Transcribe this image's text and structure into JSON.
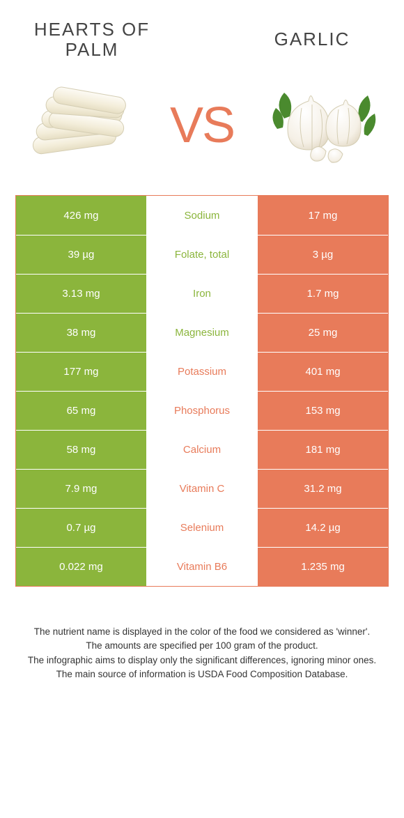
{
  "foods": {
    "left": {
      "name": "Hearts of Palm",
      "color": "#8bb53c"
    },
    "right": {
      "name": "Garlic",
      "color": "#e87b5a"
    }
  },
  "vs_label": "VS",
  "vs_color": "#e87b5a",
  "border_color": "#e87b5a",
  "row_divider_color": "#ffffff",
  "cell_text_color": "#ffffff",
  "label_fontsize": 15,
  "title_fontsize": 26,
  "notes_fontsize": 13.5,
  "rows": [
    {
      "nutrient": "Sodium",
      "left": "426 mg",
      "right": "17 mg",
      "winner": "left"
    },
    {
      "nutrient": "Folate, total",
      "left": "39 µg",
      "right": "3 µg",
      "winner": "left"
    },
    {
      "nutrient": "Iron",
      "left": "3.13 mg",
      "right": "1.7 mg",
      "winner": "left"
    },
    {
      "nutrient": "Magnesium",
      "left": "38 mg",
      "right": "25 mg",
      "winner": "left"
    },
    {
      "nutrient": "Potassium",
      "left": "177 mg",
      "right": "401 mg",
      "winner": "right"
    },
    {
      "nutrient": "Phosphorus",
      "left": "65 mg",
      "right": "153 mg",
      "winner": "right"
    },
    {
      "nutrient": "Calcium",
      "left": "58 mg",
      "right": "181 mg",
      "winner": "right"
    },
    {
      "nutrient": "Vitamin C",
      "left": "7.9 mg",
      "right": "31.2 mg",
      "winner": "right"
    },
    {
      "nutrient": "Selenium",
      "left": "0.7 µg",
      "right": "14.2 µg",
      "winner": "right"
    },
    {
      "nutrient": "Vitamin B6",
      "left": "0.022 mg",
      "right": "1.235 mg",
      "winner": "right"
    }
  ],
  "notes": [
    "The nutrient name is displayed in the color of the food we considered as 'winner'.",
    "The amounts are specified per 100 gram of the product.",
    "The infographic aims to display only the significant differences, ignoring minor ones.",
    "The main source of information is USDA Food Composition Database."
  ]
}
